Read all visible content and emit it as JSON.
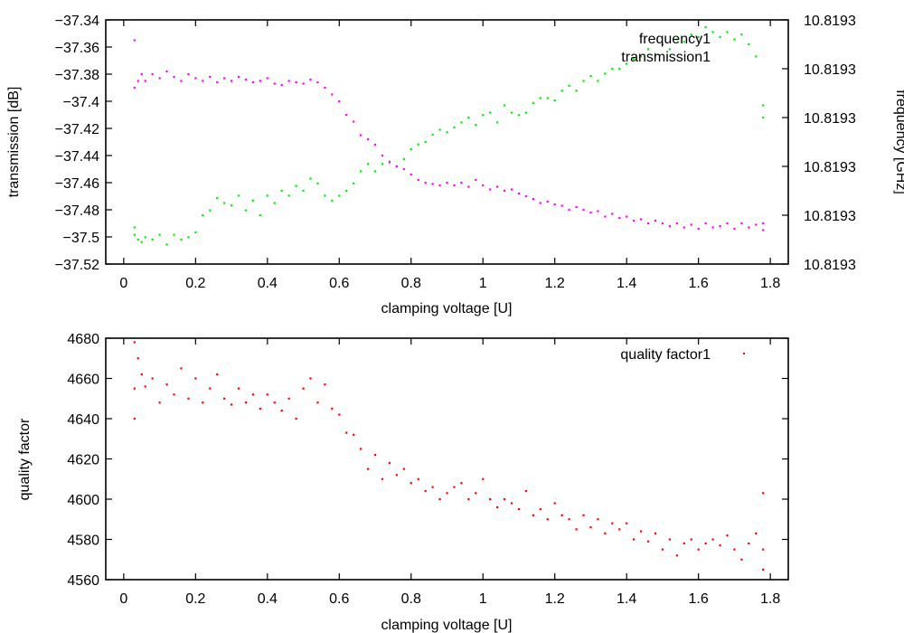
{
  "chart_data": [
    {
      "type": "scatter",
      "title": "",
      "xlabel": "clamping voltage [U]",
      "ylabel": "transmission [dB]",
      "y2label": "frequency [GHz]",
      "xlim": [
        -0.05,
        1.85
      ],
      "ylim": [
        -37.52,
        -37.34
      ],
      "y2lim": [
        0.0,
        1.0
      ],
      "xticks": [
        0,
        0.2,
        0.4,
        0.6,
        0.8,
        1,
        1.2,
        1.4,
        1.6,
        1.8
      ],
      "xtick_labels": [
        "0",
        "0.2",
        "0.4",
        "0.6",
        "0.8",
        "1",
        "1.2",
        "1.4",
        "1.6",
        "1.8"
      ],
      "yticks": [
        -37.52,
        -37.5,
        -37.48,
        -37.46,
        -37.44,
        -37.42,
        -37.4,
        -37.38,
        -37.36,
        -37.34
      ],
      "ytick_labels": [
        "−37.52",
        "−37.5",
        "−37.48",
        "−37.46",
        "−37.44",
        "−37.42",
        "−37.4",
        "−37.38",
        "−37.36",
        "−37.34"
      ],
      "y2ticks": [
        0.0,
        0.2,
        0.4,
        0.6,
        0.8,
        1.0
      ],
      "y2tick_labels": [
        "10.8193",
        "10.8193",
        "10.8193",
        "10.8193",
        "10.8193",
        "10.8193"
      ],
      "legend_position": "top-right",
      "series": [
        {
          "name": "frequency1",
          "axis": "right",
          "color": "#00ee00",
          "note": "values on right axis in relative units (0 = bottom, 1 = top of right axis)",
          "x": [
            0.03,
            0.03,
            0.04,
            0.05,
            0.06,
            0.08,
            0.1,
            0.12,
            0.14,
            0.16,
            0.18,
            0.2,
            0.22,
            0.24,
            0.26,
            0.28,
            0.3,
            0.32,
            0.34,
            0.36,
            0.38,
            0.4,
            0.42,
            0.44,
            0.46,
            0.48,
            0.5,
            0.52,
            0.54,
            0.56,
            0.58,
            0.6,
            0.62,
            0.64,
            0.66,
            0.68,
            0.7,
            0.72,
            0.74,
            0.76,
            0.78,
            0.8,
            0.82,
            0.84,
            0.86,
            0.88,
            0.9,
            0.92,
            0.94,
            0.96,
            0.98,
            1.0,
            1.02,
            1.04,
            1.06,
            1.08,
            1.1,
            1.12,
            1.14,
            1.16,
            1.18,
            1.2,
            1.22,
            1.24,
            1.26,
            1.28,
            1.3,
            1.32,
            1.34,
            1.36,
            1.38,
            1.4,
            1.42,
            1.44,
            1.46,
            1.48,
            1.5,
            1.52,
            1.54,
            1.56,
            1.58,
            1.6,
            1.62,
            1.64,
            1.66,
            1.68,
            1.7,
            1.72,
            1.74,
            1.76,
            1.78,
            1.78
          ],
          "y": [
            0.15,
            0.12,
            0.1,
            0.09,
            0.11,
            0.1,
            0.12,
            0.08,
            0.12,
            0.1,
            0.11,
            0.13,
            0.2,
            0.22,
            0.27,
            0.25,
            0.24,
            0.28,
            0.22,
            0.26,
            0.2,
            0.28,
            0.25,
            0.3,
            0.28,
            0.32,
            0.3,
            0.35,
            0.33,
            0.28,
            0.26,
            0.28,
            0.3,
            0.33,
            0.38,
            0.41,
            0.38,
            0.41,
            0.42,
            0.4,
            0.43,
            0.47,
            0.49,
            0.5,
            0.53,
            0.55,
            0.54,
            0.56,
            0.58,
            0.6,
            0.57,
            0.61,
            0.62,
            0.58,
            0.65,
            0.62,
            0.61,
            0.62,
            0.66,
            0.68,
            0.68,
            0.67,
            0.71,
            0.73,
            0.71,
            0.75,
            0.77,
            0.75,
            0.78,
            0.8,
            0.8,
            0.82,
            0.84,
            0.85,
            0.88,
            0.86,
            0.9,
            0.88,
            0.92,
            0.91,
            0.94,
            0.93,
            0.97,
            0.95,
            0.93,
            0.95,
            0.92,
            0.94,
            0.9,
            0.85,
            0.65,
            0.6
          ]
        },
        {
          "name": "transmission1",
          "axis": "left",
          "color": "#ff00ff",
          "x": [
            0.03,
            0.03,
            0.04,
            0.05,
            0.06,
            0.08,
            0.1,
            0.12,
            0.14,
            0.16,
            0.18,
            0.2,
            0.22,
            0.24,
            0.26,
            0.28,
            0.3,
            0.32,
            0.34,
            0.36,
            0.38,
            0.4,
            0.42,
            0.44,
            0.46,
            0.48,
            0.5,
            0.52,
            0.54,
            0.56,
            0.58,
            0.6,
            0.62,
            0.64,
            0.66,
            0.68,
            0.7,
            0.72,
            0.74,
            0.76,
            0.78,
            0.8,
            0.82,
            0.84,
            0.86,
            0.88,
            0.9,
            0.92,
            0.94,
            0.96,
            0.98,
            1.0,
            1.02,
            1.04,
            1.06,
            1.08,
            1.1,
            1.12,
            1.14,
            1.16,
            1.18,
            1.2,
            1.22,
            1.24,
            1.26,
            1.28,
            1.3,
            1.32,
            1.34,
            1.36,
            1.38,
            1.4,
            1.42,
            1.44,
            1.46,
            1.48,
            1.5,
            1.52,
            1.54,
            1.56,
            1.58,
            1.6,
            1.62,
            1.64,
            1.66,
            1.68,
            1.7,
            1.72,
            1.74,
            1.76,
            1.78,
            1.78
          ],
          "y": [
            -37.355,
            -37.39,
            -37.385,
            -37.38,
            -37.385,
            -37.38,
            -37.383,
            -37.378,
            -37.382,
            -37.385,
            -37.38,
            -37.383,
            -37.385,
            -37.382,
            -37.386,
            -37.383,
            -37.385,
            -37.382,
            -37.384,
            -37.386,
            -37.385,
            -37.383,
            -37.387,
            -37.388,
            -37.385,
            -37.386,
            -37.387,
            -37.384,
            -37.386,
            -37.39,
            -37.395,
            -37.4,
            -37.41,
            -37.415,
            -37.425,
            -37.428,
            -37.432,
            -37.44,
            -37.445,
            -37.448,
            -37.45,
            -37.454,
            -37.458,
            -37.46,
            -37.461,
            -37.462,
            -37.46,
            -37.462,
            -37.46,
            -37.463,
            -37.458,
            -37.462,
            -37.465,
            -37.463,
            -37.466,
            -37.465,
            -37.468,
            -37.47,
            -37.472,
            -37.475,
            -37.474,
            -37.476,
            -37.477,
            -37.48,
            -37.478,
            -37.48,
            -37.482,
            -37.481,
            -37.485,
            -37.483,
            -37.486,
            -37.485,
            -37.488,
            -37.487,
            -37.49,
            -37.488,
            -37.49,
            -37.492,
            -37.49,
            -37.493,
            -37.491,
            -37.494,
            -37.49,
            -37.493,
            -37.492,
            -37.49,
            -37.494,
            -37.49,
            -37.493,
            -37.491,
            -37.49,
            -37.495
          ]
        }
      ]
    },
    {
      "type": "scatter",
      "title": "",
      "xlabel": "clamping voltage [U]",
      "ylabel": "quality factor",
      "xlim": [
        -0.05,
        1.85
      ],
      "ylim": [
        4560,
        4680
      ],
      "xticks": [
        0,
        0.2,
        0.4,
        0.6,
        0.8,
        1,
        1.2,
        1.4,
        1.6,
        1.8
      ],
      "xtick_labels": [
        "0",
        "0.2",
        "0.4",
        "0.6",
        "0.8",
        "1",
        "1.2",
        "1.4",
        "1.6",
        "1.8"
      ],
      "yticks": [
        4560,
        4580,
        4600,
        4620,
        4640,
        4660,
        4680
      ],
      "ytick_labels": [
        "4560",
        "4580",
        "4600",
        "4620",
        "4640",
        "4660",
        "4680"
      ],
      "legend_position": "top-right",
      "series": [
        {
          "name": "quality factor1",
          "color": "#ff0000",
          "x": [
            0.03,
            0.03,
            0.03,
            0.04,
            0.05,
            0.06,
            0.08,
            0.1,
            0.12,
            0.14,
            0.16,
            0.18,
            0.2,
            0.22,
            0.24,
            0.26,
            0.28,
            0.3,
            0.32,
            0.34,
            0.36,
            0.38,
            0.4,
            0.42,
            0.44,
            0.46,
            0.48,
            0.5,
            0.52,
            0.54,
            0.56,
            0.58,
            0.6,
            0.62,
            0.64,
            0.66,
            0.68,
            0.7,
            0.72,
            0.74,
            0.76,
            0.78,
            0.8,
            0.82,
            0.84,
            0.86,
            0.88,
            0.9,
            0.92,
            0.94,
            0.96,
            0.98,
            1.0,
            1.02,
            1.04,
            1.06,
            1.08,
            1.1,
            1.12,
            1.14,
            1.16,
            1.18,
            1.2,
            1.22,
            1.24,
            1.26,
            1.28,
            1.3,
            1.32,
            1.34,
            1.36,
            1.38,
            1.4,
            1.42,
            1.44,
            1.46,
            1.48,
            1.5,
            1.52,
            1.54,
            1.56,
            1.58,
            1.6,
            1.62,
            1.64,
            1.66,
            1.68,
            1.7,
            1.72,
            1.74,
            1.76,
            1.78,
            1.78,
            1.78
          ],
          "y": [
            4678,
            4655,
            4640,
            4670,
            4662,
            4656,
            4660,
            4648,
            4657,
            4652,
            4665,
            4650,
            4660,
            4648,
            4655,
            4662,
            4650,
            4647,
            4655,
            4648,
            4652,
            4645,
            4652,
            4648,
            4644,
            4650,
            4640,
            4655,
            4660,
            4648,
            4657,
            4645,
            4642,
            4633,
            4632,
            4625,
            4615,
            4622,
            4610,
            4618,
            4612,
            4615,
            4608,
            4610,
            4604,
            4606,
            4600,
            4603,
            4606,
            4608,
            4600,
            4603,
            4610,
            4600,
            4596,
            4600,
            4598,
            4595,
            4604,
            4592,
            4595,
            4590,
            4598,
            4592,
            4590,
            4585,
            4592,
            4586,
            4590,
            4583,
            4588,
            4585,
            4588,
            4580,
            4584,
            4579,
            4583,
            4575,
            4580,
            4572,
            4578,
            4580,
            4575,
            4578,
            4580,
            4577,
            4582,
            4575,
            4570,
            4578,
            4583,
            4575,
            4565,
            4603
          ]
        }
      ]
    }
  ]
}
